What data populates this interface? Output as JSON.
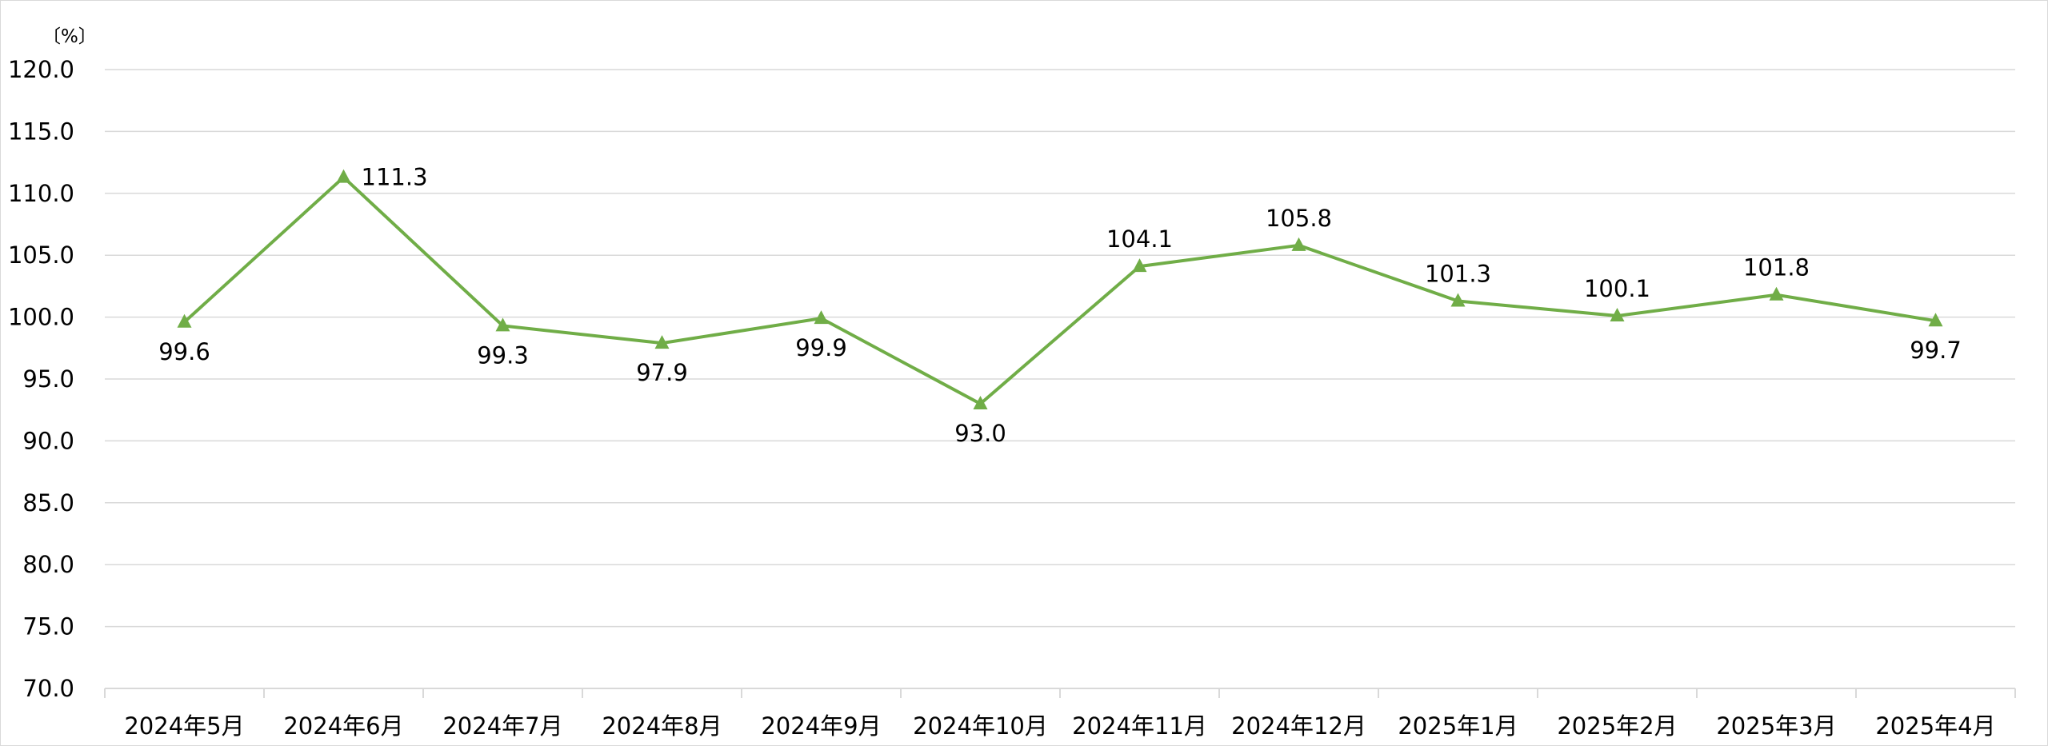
{
  "chart_data": {
    "type": "line",
    "unit_label": "〔%〕",
    "categories": [
      "2024年5月",
      "2024年6月",
      "2024年7月",
      "2024年8月",
      "2024年9月",
      "2024年10月",
      "2024年11月",
      "2024年12月",
      "2025年1月",
      "2025年2月",
      "2025年3月",
      "2025年4月"
    ],
    "series": [
      {
        "name": "",
        "values": [
          99.6,
          111.3,
          99.3,
          97.9,
          99.9,
          93.0,
          104.1,
          105.8,
          101.3,
          100.1,
          101.8,
          99.7
        ],
        "value_labels": [
          "99.6",
          "111.3",
          "99.3",
          "97.9",
          "99.9",
          "93.0",
          "104.1",
          "105.8",
          "101.3",
          "100.1",
          "101.8",
          "99.7"
        ],
        "label_positions": [
          "below",
          "right",
          "below",
          "below",
          "below",
          "below",
          "above",
          "above",
          "above",
          "above",
          "above",
          "below"
        ],
        "color": "#70ad47",
        "marker": "triangle"
      }
    ],
    "ylim": [
      70.0,
      120.0
    ],
    "y_ticks": [
      70.0,
      75.0,
      80.0,
      85.0,
      90.0,
      95.0,
      100.0,
      105.0,
      110.0,
      115.0,
      120.0
    ],
    "y_tick_labels": [
      "70.0",
      "75.0",
      "80.0",
      "85.0",
      "90.0",
      "95.0",
      "100.0",
      "105.0",
      "110.0",
      "115.0",
      "120.0"
    ],
    "grid": true,
    "gridline_color": "#d9d9d9",
    "axis_color": "#d9d9d9",
    "legend": "none",
    "title": "",
    "xlabel": "",
    "ylabel": ""
  }
}
